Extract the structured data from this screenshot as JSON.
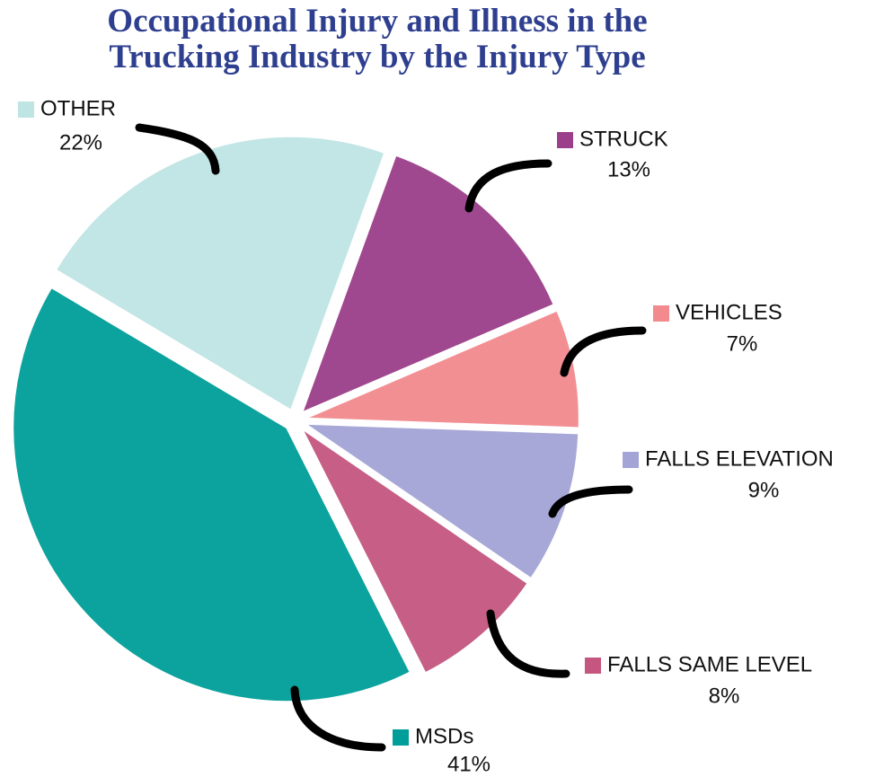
{
  "chart_data": {
    "type": "pie",
    "title": "Occupational Injury and Illness in the Trucking Industry by the Injury Type",
    "categories": [
      "STRUCK",
      "VEHICLES",
      "FALLS ELEVATION",
      "FALLS SAME LEVEL",
      "MSDs",
      "OTHER"
    ],
    "values": [
      13,
      7,
      9,
      8,
      41,
      22
    ],
    "value_labels": [
      "13%",
      "7%",
      "9%",
      "8%",
      "41%",
      "22%"
    ],
    "colors": [
      "#9b3f8a",
      "#f28a8e",
      "#a4a4d6",
      "#c4567f",
      "#009e98",
      "#bfe4e4"
    ]
  }
}
